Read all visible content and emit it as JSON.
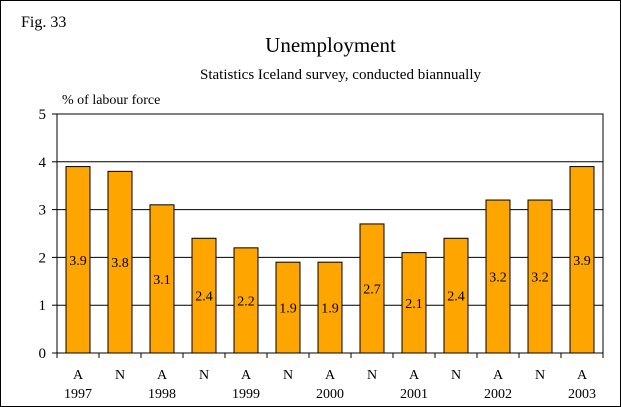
{
  "figure_label": "Fig. 33",
  "colors": {
    "bar": "#ffa500",
    "grid": "#000000"
  },
  "chart_data": {
    "type": "bar",
    "title": "Unemployment",
    "subtitle": "Statistics Iceland survey, conducted biannually",
    "ylabel": "% of labour force",
    "xlabel": "",
    "ylim": [
      0,
      5
    ],
    "yticks": [
      0,
      1,
      2,
      3,
      4,
      5
    ],
    "grid": true,
    "categories": [
      "A",
      "N",
      "A",
      "N",
      "A",
      "N",
      "A",
      "N",
      "A",
      "N",
      "A",
      "N",
      "A"
    ],
    "years": [
      "1997",
      "1998",
      "1999",
      "2000",
      "2001",
      "2002",
      "2003"
    ],
    "values": [
      3.9,
      3.8,
      3.1,
      2.4,
      2.2,
      1.9,
      1.9,
      2.7,
      2.1,
      2.4,
      3.2,
      3.2,
      3.9
    ],
    "data_labels": [
      "3.9",
      "3.8",
      "3.1",
      "2.4",
      "2.2",
      "1.9",
      "1.9",
      "2.7",
      "2.1",
      "2.4",
      "3.2",
      "3.2",
      "3.9"
    ]
  }
}
